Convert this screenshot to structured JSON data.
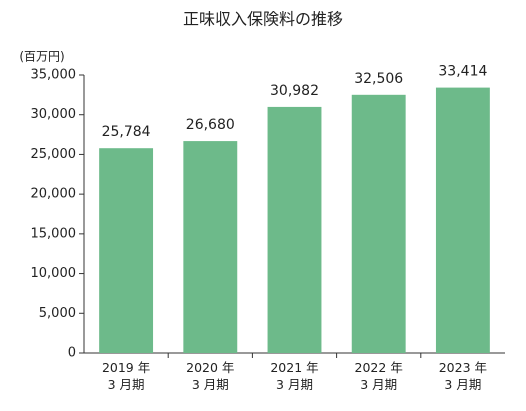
{
  "chart_data": {
    "type": "bar",
    "title": "正味収入保険料の推移",
    "y_unit": "(百万円)",
    "categories": [
      "2019 年\n3 月期",
      "2020 年\n3 月期",
      "2021 年\n3 月期",
      "2022 年\n3 月期",
      "2023 年\n3 月期"
    ],
    "values": [
      25784,
      26680,
      30982,
      32506,
      33414
    ],
    "value_labels": [
      "25,784",
      "26,680",
      "30,982",
      "32,506",
      "33,414"
    ],
    "color": "#6dba8a",
    "ylim": [
      0,
      35000
    ],
    "yticks": [
      0,
      {
        "value": 5000,
        "label": "5,000"
      },
      {
        "value": 10000,
        "label": "10,000"
      },
      {
        "value": 15000,
        "label": "15,000"
      },
      {
        "value": 20000,
        "label": "20,000"
      },
      {
        "value": 25000,
        "label": "25,000"
      },
      {
        "value": 30000,
        "label": "30,000"
      },
      {
        "value": 35000,
        "label": "35,000"
      }
    ],
    "grid": false
  }
}
